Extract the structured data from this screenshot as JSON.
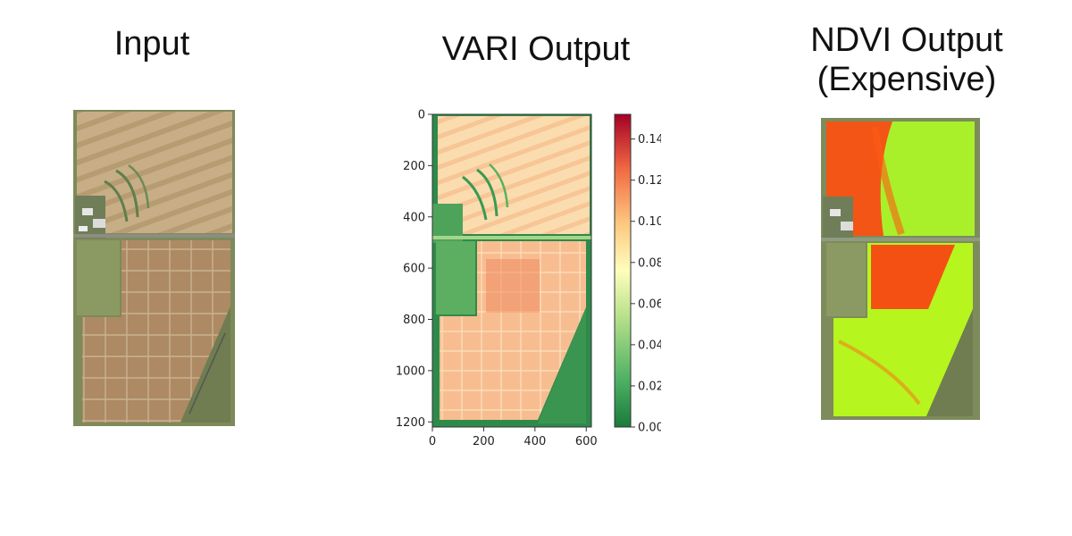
{
  "panels": {
    "input": {
      "title": "Input"
    },
    "vari": {
      "title": "VARI Output"
    },
    "ndvi": {
      "title_line1": "NDVI Output",
      "title_line2": "(Expensive)"
    }
  },
  "chart_data": {
    "type": "heatmap",
    "title": "",
    "xlabel": "",
    "ylabel": "",
    "xlim": [
      0,
      620
    ],
    "ylim": [
      1220,
      0
    ],
    "x_ticks": [
      0,
      200,
      400,
      600
    ],
    "y_ticks": [
      0,
      200,
      400,
      600,
      800,
      1000,
      1200
    ],
    "colorbar": {
      "colormap": "RdYlGn_r",
      "min": 0.0,
      "max": 0.152,
      "ticks": [
        "0.00",
        "0.02",
        "0.04",
        "0.06",
        "0.08",
        "0.10",
        "0.12",
        "0.14"
      ]
    },
    "colors": {
      "low": "#1a7a3c",
      "mid": "#fefebd",
      "high": "#a50026"
    }
  }
}
